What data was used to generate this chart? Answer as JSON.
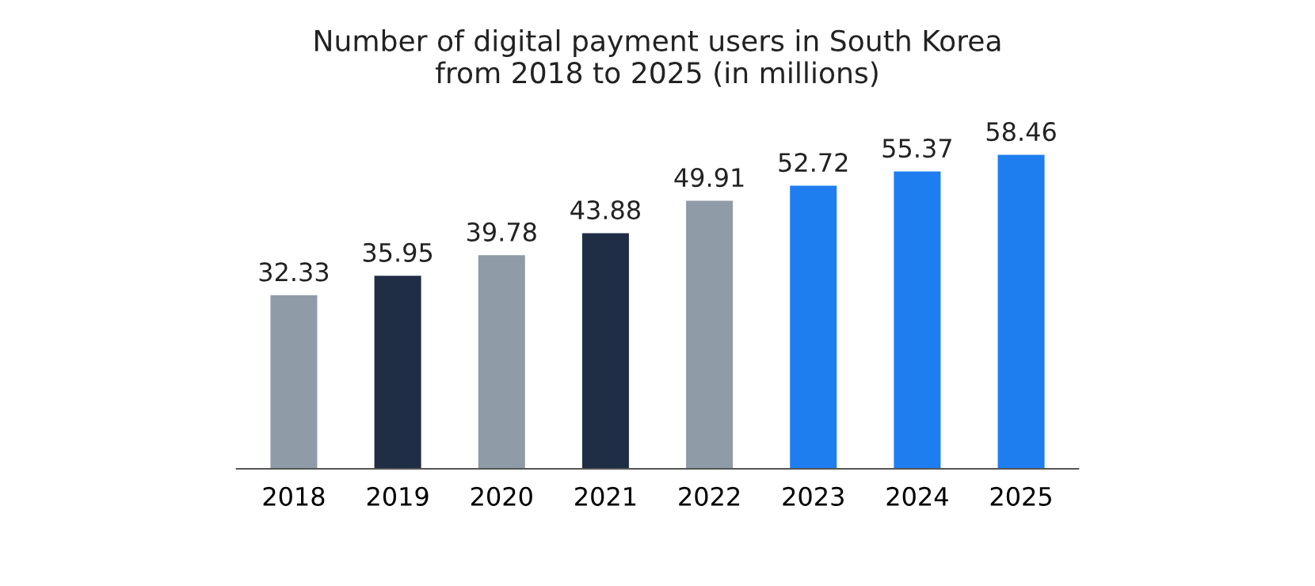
{
  "chart_data": {
    "type": "bar",
    "title": "Number of digital payment users in South Korea\nfrom 2018 to 2025 (in millions)",
    "categories": [
      "2018",
      "2019",
      "2020",
      "2021",
      "2022",
      "2023",
      "2024",
      "2025"
    ],
    "values": [
      32.33,
      35.95,
      39.78,
      43.88,
      49.91,
      52.72,
      55.37,
      58.46
    ],
    "colors": [
      "#8f9ba6",
      "#1f2d45",
      "#8f9ba6",
      "#1f2d45",
      "#8f9ba6",
      "#1e7ef0",
      "#1e7ef0",
      "#1e7ef0"
    ],
    "data_labels": true,
    "grid": false,
    "legend": false
  }
}
